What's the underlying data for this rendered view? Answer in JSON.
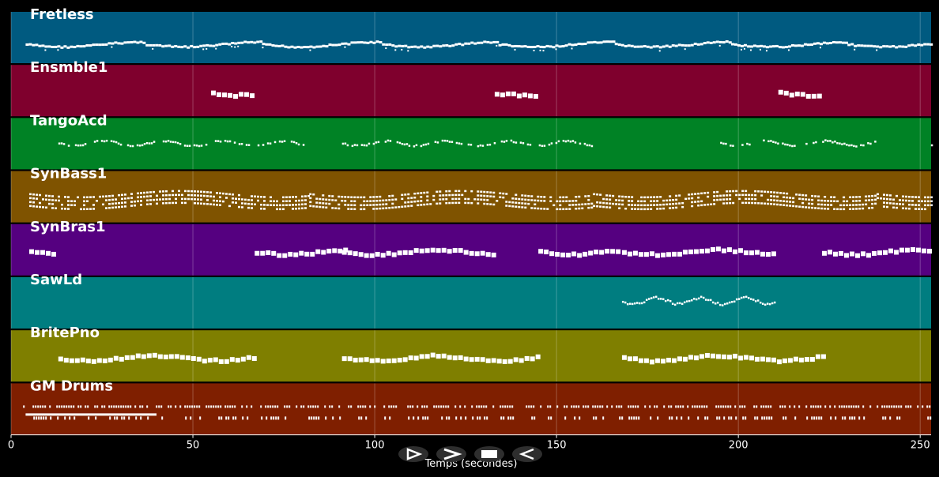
{
  "x_axis": {
    "label": "Temps (secondes)",
    "min": 0,
    "max": 253,
    "ticks": [
      0,
      50,
      100,
      150,
      200,
      250
    ]
  },
  "tracks": [
    {
      "name": "Fretless",
      "color": "#005a80",
      "style": "line",
      "segments": [
        [
          4,
          37
        ],
        [
          37,
          69
        ],
        [
          69,
          102
        ],
        [
          102,
          134
        ],
        [
          134,
          166
        ],
        [
          166,
          198
        ],
        [
          198,
          230
        ],
        [
          230,
          253
        ]
      ]
    },
    {
      "name": "Ensmble1",
      "color": "#7f002d",
      "style": "block",
      "segments": [
        [
          55,
          67
        ],
        [
          133,
          145
        ],
        [
          211,
          223
        ]
      ]
    },
    {
      "name": "TangoAcd",
      "color": "#008225",
      "style": "dots",
      "segments": [
        [
          13,
          82
        ],
        [
          91,
          160
        ],
        [
          195,
          238
        ],
        [
          251,
          253
        ]
      ]
    },
    {
      "name": "SynBass1",
      "color": "#7f5300",
      "style": "dense",
      "segments": [
        [
          5,
          82
        ],
        [
          82,
          160
        ],
        [
          160,
          238
        ],
        [
          238,
          253
        ]
      ]
    },
    {
      "name": "SynBras1",
      "color": "#550080",
      "style": "block",
      "segments": [
        [
          5,
          12
        ],
        [
          67,
          92
        ],
        [
          91,
          133
        ],
        [
          145,
          167
        ],
        [
          168,
          210
        ],
        [
          223,
          253
        ]
      ]
    },
    {
      "name": "SawLd",
      "color": "#007d80",
      "style": "melody",
      "segments": [
        [
          168,
          210
        ]
      ]
    },
    {
      "name": "BritePno",
      "color": "#7f7f00",
      "style": "block",
      "segments": [
        [
          13,
          67
        ],
        [
          91,
          145
        ],
        [
          168,
          223
        ]
      ]
    },
    {
      "name": "GM Drums",
      "color": "#7f1f00",
      "style": "drums",
      "segments": [
        [
          2,
          253
        ]
      ]
    }
  ],
  "controls": [
    {
      "name": "play-outline-button",
      "glyph": "play-outline"
    },
    {
      "name": "fast-forward-button",
      "glyph": "chevron"
    },
    {
      "name": "stop-button",
      "glyph": "stop"
    },
    {
      "name": "reverse-button",
      "glyph": "reverse"
    }
  ]
}
